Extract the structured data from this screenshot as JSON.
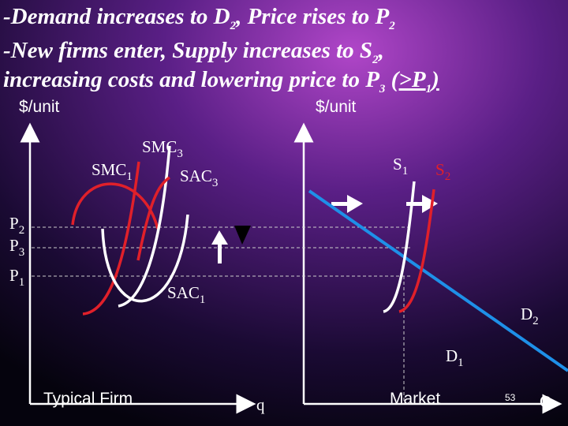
{
  "header": {
    "lines": [
      [
        "-Demand increases to D",
        "2",
        ", Price rises to P",
        "2"
      ],
      [
        "-New firms enter, Supply increases to S",
        "2",
        ","
      ],
      [
        "increasing costs and lowering price to P",
        "3",
        " ",
        "(>P",
        "1",
        ")"
      ]
    ]
  },
  "firm": {
    "y_axis_label": "$/unit",
    "smc3": [
      "SMC",
      "3"
    ],
    "smc1": [
      "SMC",
      "1"
    ],
    "sac3": [
      "SAC",
      "3"
    ],
    "sac1": [
      "SAC",
      "1"
    ],
    "p2": [
      "P",
      "2"
    ],
    "p3": [
      "P",
      "3"
    ],
    "p1": [
      "P",
      "1"
    ],
    "caption": "Typical Firm",
    "x_axis_label": "q"
  },
  "market": {
    "y_axis_label": "$/unit",
    "s1": [
      "S",
      "1"
    ],
    "s2": [
      "S",
      "2"
    ],
    "d2": [
      "D",
      "2"
    ],
    "d1": [
      "D",
      "1"
    ],
    "caption": "Market",
    "x_axis_label": "Q"
  },
  "slide_number": "53"
}
